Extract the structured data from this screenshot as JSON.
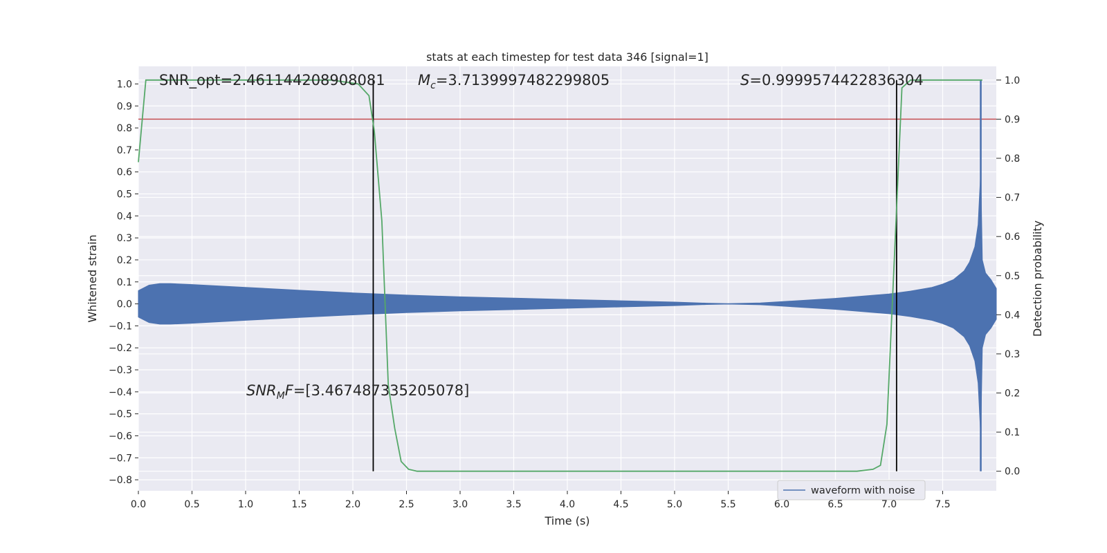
{
  "chart_data": {
    "type": "line",
    "title": "stats at each timestep for test data 346 [signal=1]",
    "xlabel": "Time (s)",
    "ylabel_left": "Whitened strain",
    "ylabel_right": "Detection probability",
    "xlim": [
      0.0,
      8.0
    ],
    "ylim_left": [
      -0.85,
      1.08
    ],
    "ylim_right": [
      -0.05,
      1.035
    ],
    "xticks": [
      0.0,
      0.5,
      1.0,
      1.5,
      2.0,
      2.5,
      3.0,
      3.5,
      4.0,
      4.5,
      5.0,
      5.5,
      6.0,
      6.5,
      7.0,
      7.5
    ],
    "xtick_labels": [
      "0.0",
      "0.5",
      "1.0",
      "1.5",
      "2.0",
      "2.5",
      "3.0",
      "3.5",
      "4.0",
      "4.5",
      "5.0",
      "5.5",
      "6.0",
      "6.5",
      "7.0",
      "7.5"
    ],
    "yticks_left": [
      1.0,
      0.9,
      0.8,
      0.7,
      0.6,
      0.5,
      0.4,
      0.3,
      0.2,
      0.1,
      0.0,
      -0.1,
      -0.2,
      -0.3,
      -0.4,
      -0.5,
      -0.6,
      -0.7,
      -0.8
    ],
    "ytick_labels_left": [
      "1.0",
      "0.9",
      "0.8",
      "0.7",
      "0.6",
      "0.5",
      "0.4",
      "0.3",
      "0.2",
      "0.1",
      "0.0",
      "−0.1",
      "−0.2",
      "−0.3",
      "−0.4",
      "−0.5",
      "−0.6",
      "−0.7",
      "−0.8"
    ],
    "yticks_right": [
      1.0,
      0.9,
      0.8,
      0.7,
      0.6,
      0.5,
      0.4,
      0.3,
      0.2,
      0.1,
      0.0
    ],
    "ytick_labels_right": [
      "1.0",
      "0.9",
      "0.8",
      "0.7",
      "0.6",
      "0.5",
      "0.4",
      "0.3",
      "0.2",
      "0.1",
      "0.0"
    ],
    "grid": true,
    "legend_placement": "lower-right",
    "waveform_envelope": {
      "name": "waveform with noise",
      "color": "#4c72b0",
      "t": [
        0.0,
        0.1,
        0.2,
        0.3,
        0.5,
        1.0,
        1.5,
        2.0,
        2.5,
        3.0,
        3.5,
        4.0,
        4.5,
        5.0,
        5.3,
        5.5,
        5.8,
        6.0,
        6.5,
        7.0,
        7.2,
        7.4,
        7.5,
        7.6,
        7.7,
        7.75,
        7.8,
        7.83,
        7.855,
        7.87,
        7.9,
        7.95,
        8.0
      ],
      "amplitude": [
        0.06,
        0.085,
        0.092,
        0.092,
        0.088,
        0.075,
        0.062,
        0.05,
        0.04,
        0.032,
        0.026,
        0.02,
        0.014,
        0.008,
        0.003,
        0.001,
        0.004,
        0.01,
        0.025,
        0.045,
        0.058,
        0.075,
        0.09,
        0.11,
        0.15,
        0.19,
        0.26,
        0.36,
        0.6,
        0.2,
        0.14,
        0.11,
        0.07
      ]
    },
    "detection_probability": {
      "color": "#55a868",
      "t": [
        0.0,
        0.07,
        0.15,
        1.8,
        2.05,
        2.15,
        2.2,
        2.27,
        2.33,
        2.39,
        2.45,
        2.52,
        2.6,
        2.8,
        6.7,
        6.85,
        6.92,
        6.98,
        7.05,
        7.12,
        7.2,
        7.3,
        7.87
      ],
      "values": [
        0.79,
        1.0,
        1.0,
        1.0,
        0.99,
        0.96,
        0.87,
        0.64,
        0.22,
        0.11,
        0.025,
        0.005,
        0.0,
        0.0,
        0.0,
        0.005,
        0.015,
        0.12,
        0.55,
        0.98,
        1.0,
        1.0,
        1.0
      ]
    },
    "threshold": {
      "value": 0.9,
      "color": "#c44e52"
    },
    "vertical_markers": [
      {
        "x": 2.19,
        "color": "#000000"
      },
      {
        "x": 7.07,
        "color": "#000000"
      },
      {
        "x": 7.855,
        "color": "#4c72b0"
      }
    ],
    "annotations": {
      "snr_opt": "SNR_opt=2.461144208908081",
      "mc_symbol": "M",
      "mc_sub": "c",
      "mc_value": "=3.7139997482299805",
      "s_symbol": "S",
      "s_value": "=0.9999574422836304",
      "snr_mf_symbol": "SNR",
      "snr_mf_sub": "M",
      "snr_mf_f": "F",
      "snr_mf_value": "=[3.467487335205078]"
    }
  }
}
